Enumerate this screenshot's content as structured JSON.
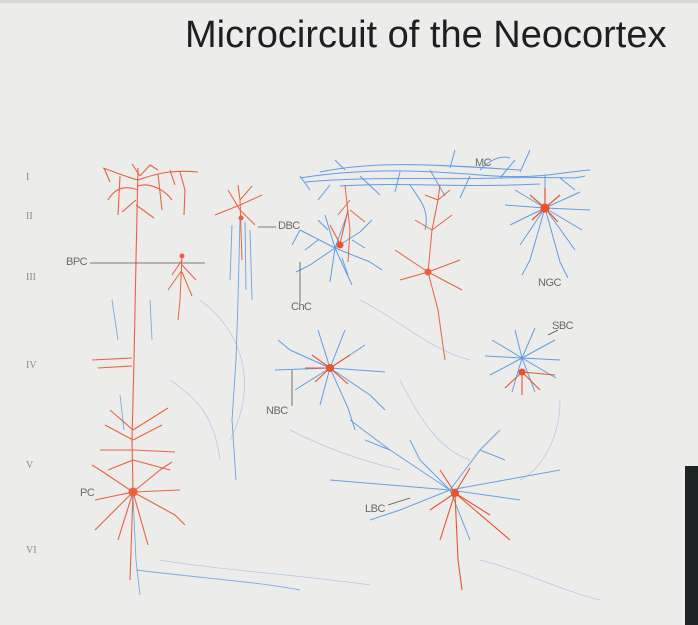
{
  "slide": {
    "title": "Microcircuit of the Neocortex"
  },
  "layers": [
    "I",
    "II",
    "III",
    "IV",
    "V",
    "VI"
  ],
  "cell_labels": {
    "mc": "MC",
    "dbc": "DBC",
    "bpc": "BPC",
    "ngc": "NGC",
    "chc": "ChC",
    "sbc": "SBC",
    "nbc": "NBC",
    "pc": "PC",
    "lbc": "LBC"
  },
  "colors": {
    "pyramidal": "#e8542e",
    "interneuron": "#4a8fe0"
  }
}
